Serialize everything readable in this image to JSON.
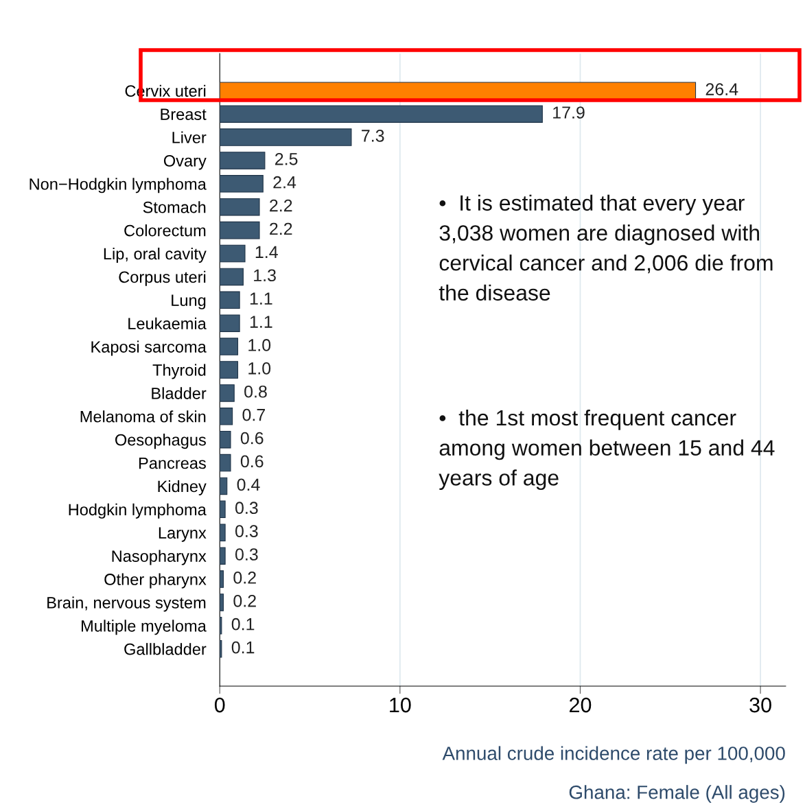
{
  "chart_data": {
    "type": "bar",
    "orientation": "horizontal",
    "categories": [
      "Cervix uteri",
      "Breast",
      "Liver",
      "Ovary",
      "Non−Hodgkin lymphoma",
      "Stomach",
      "Colorectum",
      "Lip, oral cavity",
      "Corpus uteri",
      "Lung",
      "Leukaemia",
      "Kaposi sarcoma",
      "Thyroid",
      "Bladder",
      "Melanoma of skin",
      "Oesophagus",
      "Pancreas",
      "Kidney",
      "Hodgkin lymphoma",
      "Larynx",
      "Nasopharynx",
      "Other pharynx",
      "Brain, nervous system",
      "Multiple myeloma",
      "Gallbladder"
    ],
    "values": [
      26.4,
      17.9,
      7.3,
      2.5,
      2.4,
      2.2,
      2.2,
      1.4,
      1.3,
      1.1,
      1.1,
      1.0,
      1.0,
      0.8,
      0.7,
      0.6,
      0.6,
      0.4,
      0.3,
      0.3,
      0.3,
      0.2,
      0.2,
      0.1,
      0.1
    ],
    "value_labels": [
      "26.4",
      "17.9",
      "7.3",
      "2.5",
      "2.4",
      "2.2",
      "2.2",
      "1.4",
      "1.3",
      "1.1",
      "1.1",
      "1.0",
      "1.0",
      "0.8",
      "0.7",
      "0.6",
      "0.6",
      "0.4",
      "0.3",
      "0.3",
      "0.3",
      "0.2",
      "0.2",
      "0.1",
      "0.1"
    ],
    "colors": [
      "#ff8000",
      "#3d5a73",
      "#3d5a73",
      "#3d5a73",
      "#3d5a73",
      "#3d5a73",
      "#3d5a73",
      "#3d5a73",
      "#3d5a73",
      "#3d5a73",
      "#3d5a73",
      "#3d5a73",
      "#3d5a73",
      "#3d5a73",
      "#3d5a73",
      "#3d5a73",
      "#3d5a73",
      "#3d5a73",
      "#3d5a73",
      "#3d5a73",
      "#3d5a73",
      "#3d5a73",
      "#3d5a73",
      "#3d5a73",
      "#3d5a73"
    ],
    "xlim": [
      0,
      31.4
    ],
    "xticks": [
      0,
      10,
      20,
      30
    ],
    "grid": "x",
    "xlabel": "Annual crude incidence rate per 100,000",
    "annotations": [
      "Ghana: Female (All ages)",
      "•  It is estimated that every year 3,038 women are diagnosed with cervical cancer and 2,006 die from the disease",
      "•  the 1st most frequent cancer among women between 15 and 44 years of age"
    ]
  }
}
